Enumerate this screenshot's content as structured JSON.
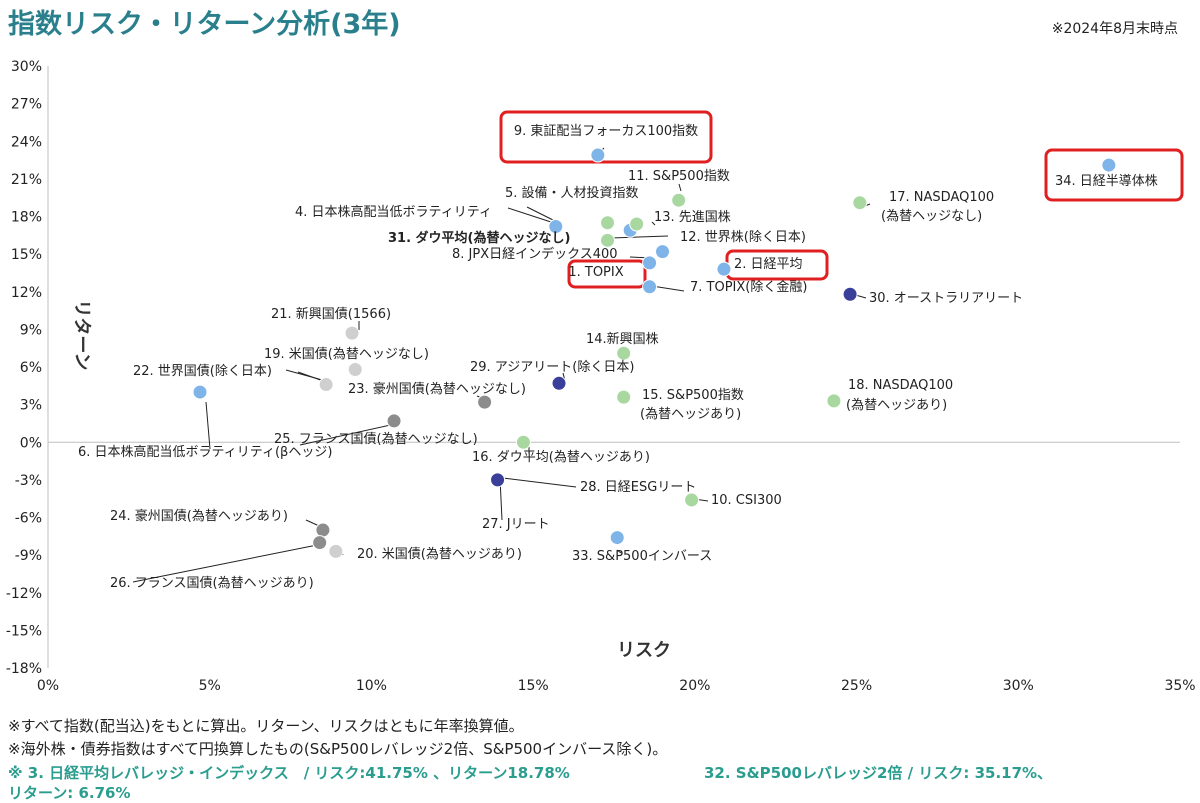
{
  "header": {
    "title": "指数リスク・リターン分析(3年)",
    "as_of": "※2024年8月末時点"
  },
  "notes": {
    "line1": "※すべて指数(配当込)をもとに算出。リターン、リスクはともに年率換算値。",
    "line2": "※海外株・債券指数はすべて円換算したもの(S&P500レバレッジ2倍、S&P500インバース除く)。",
    "line3a": "※ 3. 日経平均レバレッジ・インデックス　/ リスク:41.75% 、リターン18.78%",
    "line3b": "32. S&P500レバレッジ2倍 / リスク: 35.17%、",
    "line4": "リターン: 6.76%"
  },
  "colors": {
    "light_blue": "#7fb4e8",
    "light_green": "#a8d8a0",
    "dark_navy": "#3a3f9a",
    "gray": "#8c8c8c",
    "light_gray": "#cfcfcf",
    "highlight": "#e02020",
    "title_teal": "#2a7f8c"
  },
  "chart_data": {
    "type": "scatter",
    "xlabel": "リスク",
    "ylabel": "リターン",
    "xlim": [
      0,
      35
    ],
    "ylim": [
      -18,
      30
    ],
    "x_ticks": [
      "0%",
      "5%",
      "10%",
      "15%",
      "20%",
      "25%",
      "30%",
      "35%"
    ],
    "y_ticks": [
      "30%",
      "27%",
      "24%",
      "21%",
      "18%",
      "15%",
      "12%",
      "9%",
      "6%",
      "3%",
      "0%",
      "-3%",
      "-6%",
      "-9%",
      "-12%",
      "-15%",
      "-18%"
    ],
    "grid": false,
    "points": [
      {
        "label": "1. TOPIX",
        "x": 18.6,
        "y": 14.3,
        "color": "light_blue",
        "highlight": true
      },
      {
        "label": "2. 日経平均",
        "x": 20.9,
        "y": 13.8,
        "color": "light_blue",
        "highlight": true
      },
      {
        "label": "4. 日本株高配当低ボラティリティ",
        "x": 15.7,
        "y": 17.2,
        "color": "light_blue"
      },
      {
        "label": "5. 設備・人材投資指数",
        "x": 18.0,
        "y": 16.9,
        "color": "light_blue"
      },
      {
        "label": "6. 日本株高配当低ボラティリティ(βヘッジ)",
        "x": 4.7,
        "y": 4.0,
        "color": "light_blue"
      },
      {
        "label": "7.  TOPIX(除く金融)",
        "x": 18.6,
        "y": 12.4,
        "color": "light_blue"
      },
      {
        "label": "8. JPX日経インデックス400",
        "x": 19.0,
        "y": 15.2,
        "color": "light_blue"
      },
      {
        "label": "9. 東証配当フォーカス100指数",
        "x": 17.0,
        "y": 22.9,
        "color": "light_blue",
        "highlight": true
      },
      {
        "label": "10. CSI300",
        "x": 19.9,
        "y": -4.6,
        "color": "light_green"
      },
      {
        "label": "11. S&P500指数",
        "x": 19.5,
        "y": 19.3,
        "color": "light_green"
      },
      {
        "label": "12. 世界株(除く日本)",
        "x": 17.3,
        "y": 16.1,
        "color": "light_green"
      },
      {
        "label": "13.  先進国株",
        "x": 18.2,
        "y": 17.4,
        "color": "light_green"
      },
      {
        "label": "14.新興国株",
        "x": 17.8,
        "y": 7.1,
        "color": "light_green"
      },
      {
        "label": "15. S&P500指数(為替ヘッジあり)",
        "x": 17.8,
        "y": 3.6,
        "color": "light_green"
      },
      {
        "label": "16. ダウ平均(為替ヘッジあり)",
        "x": 14.7,
        "y": 0.0,
        "color": "light_green"
      },
      {
        "label": "17.  NASDAQ100(為替ヘッジなし)",
        "x": 25.1,
        "y": 19.1,
        "color": "light_green"
      },
      {
        "label": "18. NASDAQ100(為替ヘッジあり)",
        "x": 24.3,
        "y": 3.3,
        "color": "light_green"
      },
      {
        "label": "19. 米国債(為替ヘッジなし)",
        "x": 9.5,
        "y": 5.8,
        "color": "light_gray"
      },
      {
        "label": "20. 米国債(為替ヘッジあり)",
        "x": 8.9,
        "y": -8.7,
        "color": "light_gray"
      },
      {
        "label": "21. 新興国債(1566)",
        "x": 9.4,
        "y": 8.7,
        "color": "light_gray"
      },
      {
        "label": "22. 世界国債(除く日本)",
        "x": 8.6,
        "y": 4.6,
        "color": "light_gray"
      },
      {
        "label": "23. 豪州国債(為替ヘッジなし)",
        "x": 13.5,
        "y": 3.2,
        "color": "gray"
      },
      {
        "label": "24. 豪州国債(為替ヘッジあり)",
        "x": 8.5,
        "y": -7.0,
        "color": "gray"
      },
      {
        "label": "25. フランス国債(為替ヘッジなし)",
        "x": 10.7,
        "y": 1.7,
        "color": "gray"
      },
      {
        "label": "26. フランス国債(為替ヘッジあり)",
        "x": 8.4,
        "y": -8.0,
        "color": "gray"
      },
      {
        "label": "27. Jリート",
        "x": 13.9,
        "y": -3.0,
        "color": "dark_navy"
      },
      {
        "label": "28. 日経ESGリート",
        "x": 13.9,
        "y": -3.0,
        "color": "dark_navy"
      },
      {
        "label": "29. アジアリート(除く日本)",
        "x": 15.8,
        "y": 4.7,
        "color": "dark_navy"
      },
      {
        "label": "30. オーストラリアリート",
        "x": 24.8,
        "y": 11.8,
        "color": "dark_navy"
      },
      {
        "label": "31. ダウ平均(為替ヘッジなし)",
        "x": 17.3,
        "y": 17.5,
        "color": "light_green"
      },
      {
        "label": "33. S&P500インバース",
        "x": 17.6,
        "y": -7.6,
        "color": "light_blue"
      },
      {
        "label": "34. 日経半導体株",
        "x": 32.8,
        "y": 22.1,
        "color": "light_blue",
        "highlight": true
      }
    ]
  }
}
